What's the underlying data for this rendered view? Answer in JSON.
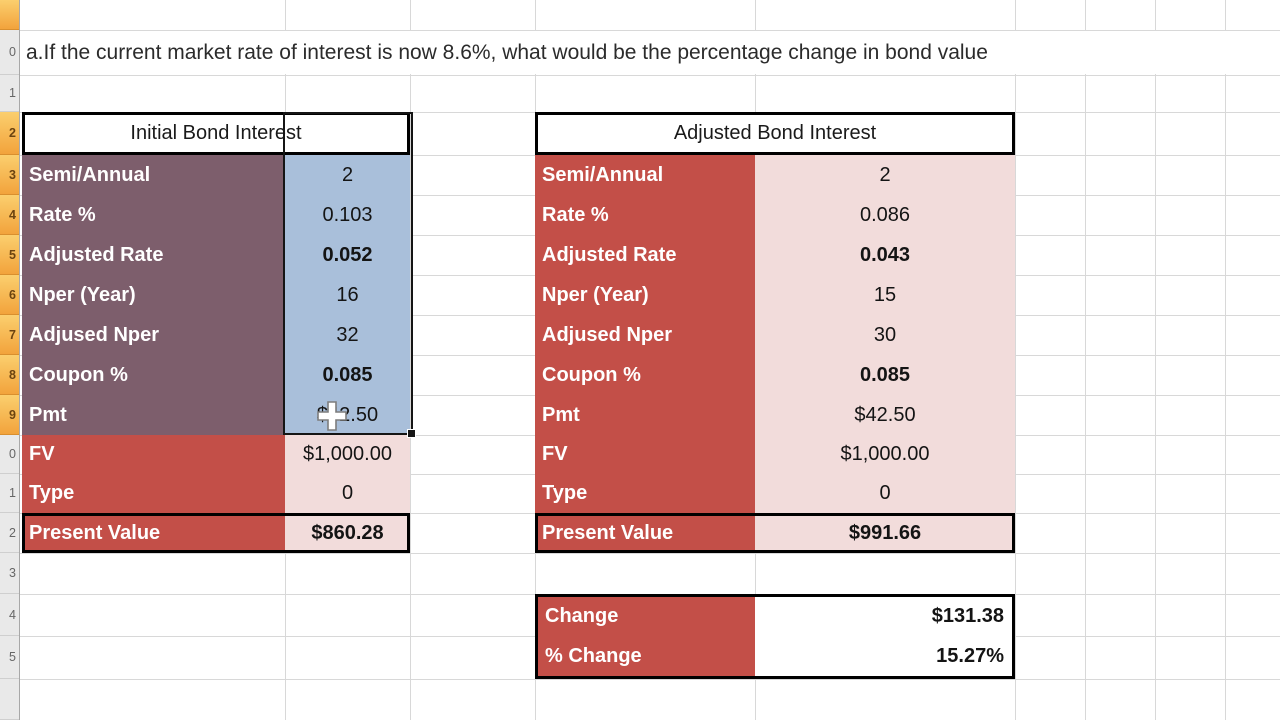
{
  "sheet": {
    "question": "a.If the current market rate of interest is now 8.6%, what would be the percentage change in bond value",
    "row_numbers": [
      "0",
      "1",
      "2",
      "3",
      "4",
      "5",
      "6",
      "7",
      "8",
      "9",
      "0",
      "1",
      "2",
      "3",
      "4",
      "5"
    ]
  },
  "initial_table": {
    "title": "Initial Bond Interest",
    "rows": [
      {
        "label": "Semi/Annual",
        "value": "2"
      },
      {
        "label": "Rate %",
        "value": "0.103"
      },
      {
        "label": "Adjusted Rate",
        "value": "0.052"
      },
      {
        "label": "Nper (Year)",
        "value": "16"
      },
      {
        "label": "Adjused Nper",
        "value": "32"
      },
      {
        "label": "Coupon %",
        "value": "0.085"
      },
      {
        "label": "Pmt",
        "value": "$42.50"
      },
      {
        "label": "FV",
        "value": "$1,000.00"
      },
      {
        "label": "Type",
        "value": "0"
      },
      {
        "label": "Present Value",
        "value": "$860.28"
      }
    ]
  },
  "adjusted_table": {
    "title": "Adjusted Bond Interest",
    "rows": [
      {
        "label": "Semi/Annual",
        "value": "2"
      },
      {
        "label": "Rate %",
        "value": "0.086"
      },
      {
        "label": "Adjusted Rate",
        "value": "0.043"
      },
      {
        "label": "Nper (Year)",
        "value": "15"
      },
      {
        "label": "Adjused Nper",
        "value": "30"
      },
      {
        "label": "Coupon %",
        "value": "0.085"
      },
      {
        "label": "Pmt",
        "value": "$42.50"
      },
      {
        "label": "FV",
        "value": "$1,000.00"
      },
      {
        "label": "Type",
        "value": "0"
      },
      {
        "label": "Present Value",
        "value": "$991.66"
      }
    ]
  },
  "change_table": {
    "rows": [
      {
        "label": "Change",
        "value": "$131.38"
      },
      {
        "label": "% Change",
        "value": "15.27%"
      }
    ]
  },
  "colors": {
    "plum_label": "#7d5e6c",
    "blue_value": "#a9bfda",
    "red_label": "#c34f48",
    "pink_value": "#f2dcdb",
    "header_highlight": "#f2a33c",
    "selection_border": "#151515"
  }
}
